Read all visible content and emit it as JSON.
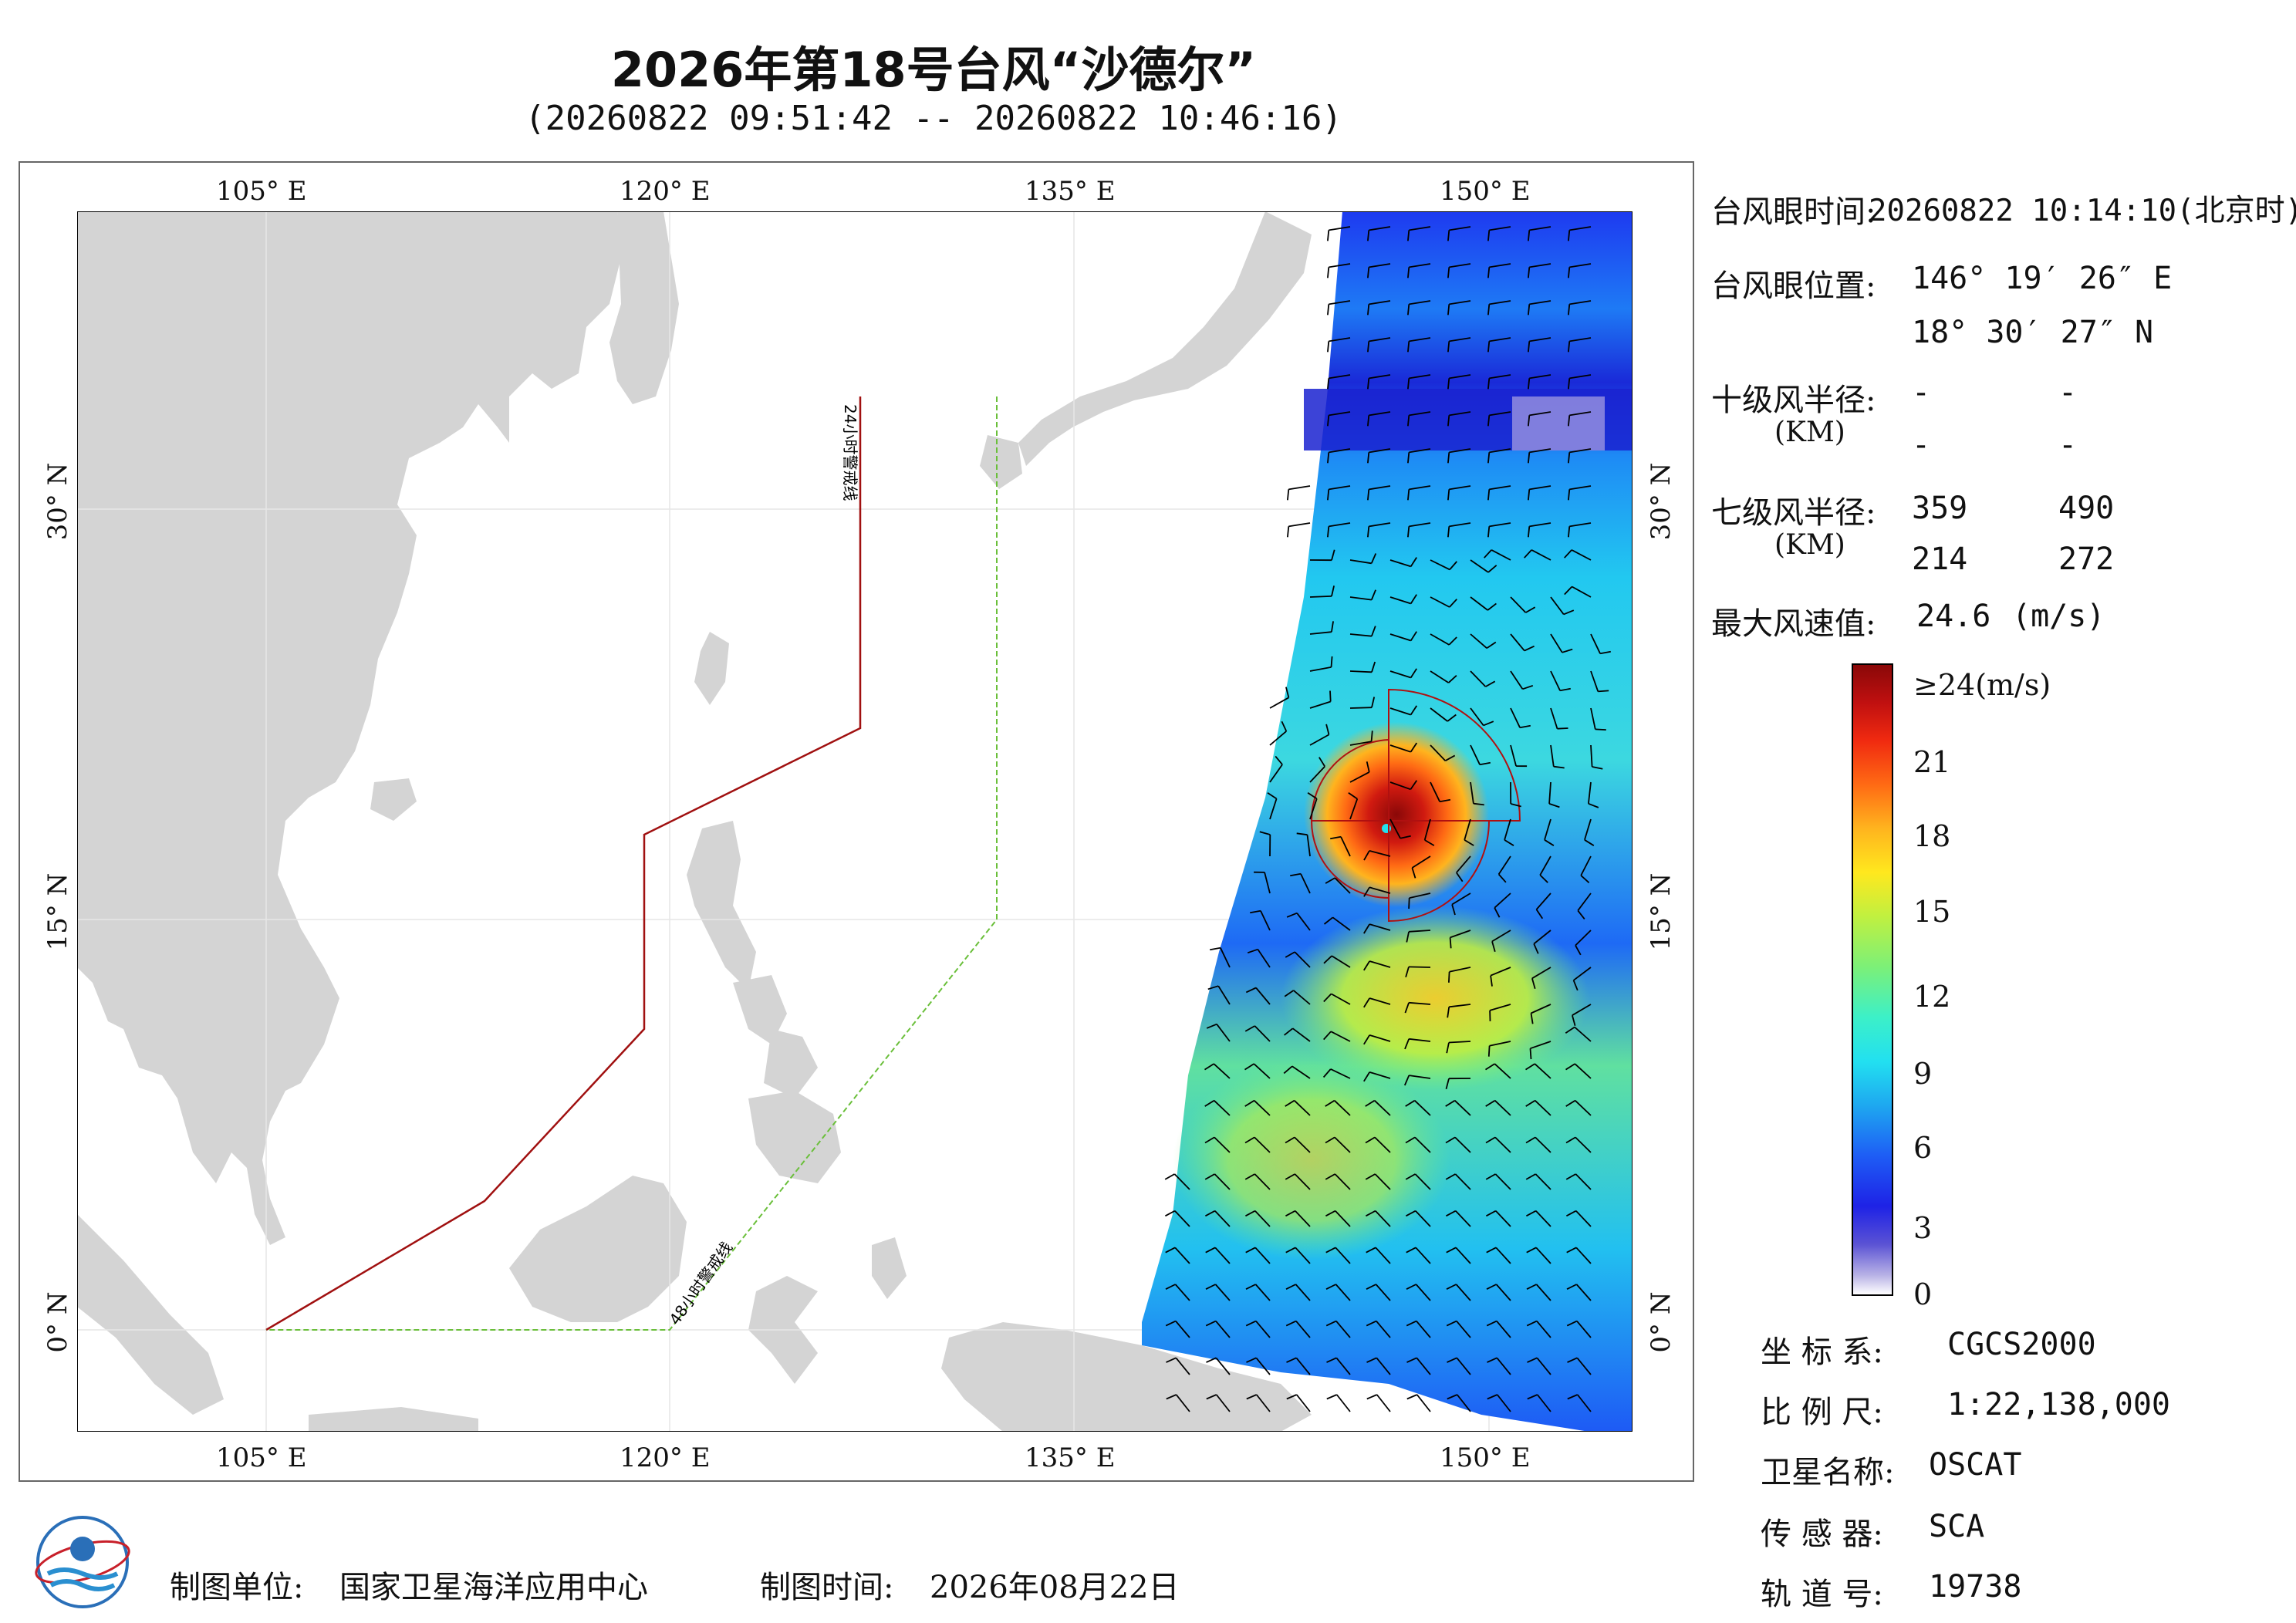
{
  "title": "2026年第18号台风“沙德尔”",
  "subtitle": "(20260822 09:51:42 -- 20260822 10:46:16)",
  "map": {
    "lon_ticks_top": [
      "105° E",
      "120° E",
      "135° E",
      "150° E"
    ],
    "lon_ticks_bottom": [
      "105° E",
      "120° E",
      "135° E",
      "150° E"
    ],
    "lat_ticks_left": [
      "30° N",
      "15° N",
      "0° N"
    ],
    "lat_ticks_right": [
      "30° N",
      "15° N",
      "0° N"
    ],
    "line_24h_label": "24小时警戒线",
    "line_48h_label": "48小时警戒线",
    "colors": {
      "land": "#d4d4d4",
      "sea": "#ffffff",
      "line_24h": "#a01010",
      "line_48h": "#6abf3a",
      "wind_barb": "#000000"
    }
  },
  "info": {
    "eye_time_label": "台风眼时间:",
    "eye_time_value": "20260822 10:14:10(北京时)",
    "eye_pos_label": "台风眼位置:",
    "eye_lon": "146° 19′ 26″ E",
    "eye_lat": "18° 30′ 27″ N",
    "r10_label": "十级风半径:",
    "r10_unit": "(KM)",
    "r10_values": [
      "-",
      "-",
      "-",
      "-"
    ],
    "r7_label": "七级风半径:",
    "r7_unit": "(KM)",
    "r7_values": [
      "359",
      "490",
      "214",
      "272"
    ],
    "max_wind_label": "最大风速值:",
    "max_wind_value": "24.6",
    "max_wind_unit": "(m/s)"
  },
  "colorbar": {
    "labels": [
      "≥24(m/s)",
      "21",
      "18",
      "15",
      "12",
      "9",
      "6",
      "3",
      "0"
    ]
  },
  "meta": {
    "crs_label": "坐 标 系:",
    "crs_value": "CGCS2000",
    "scale_label": "比 例 尺:",
    "scale_value": "1:22,138,000",
    "sat_label": "卫星名称:",
    "sat_value": "OSCAT",
    "sensor_label": "传 感 器:",
    "sensor_value": "SCA",
    "orbit_label": "轨 道 号:",
    "orbit_value": "19738"
  },
  "footer": {
    "unit_label": "制图单位:",
    "unit_value": "国家卫星海洋应用中心",
    "time_label": "制图时间:",
    "time_value": "2026年08月22日"
  },
  "logo": {
    "icon": "soa-logo-icon"
  }
}
